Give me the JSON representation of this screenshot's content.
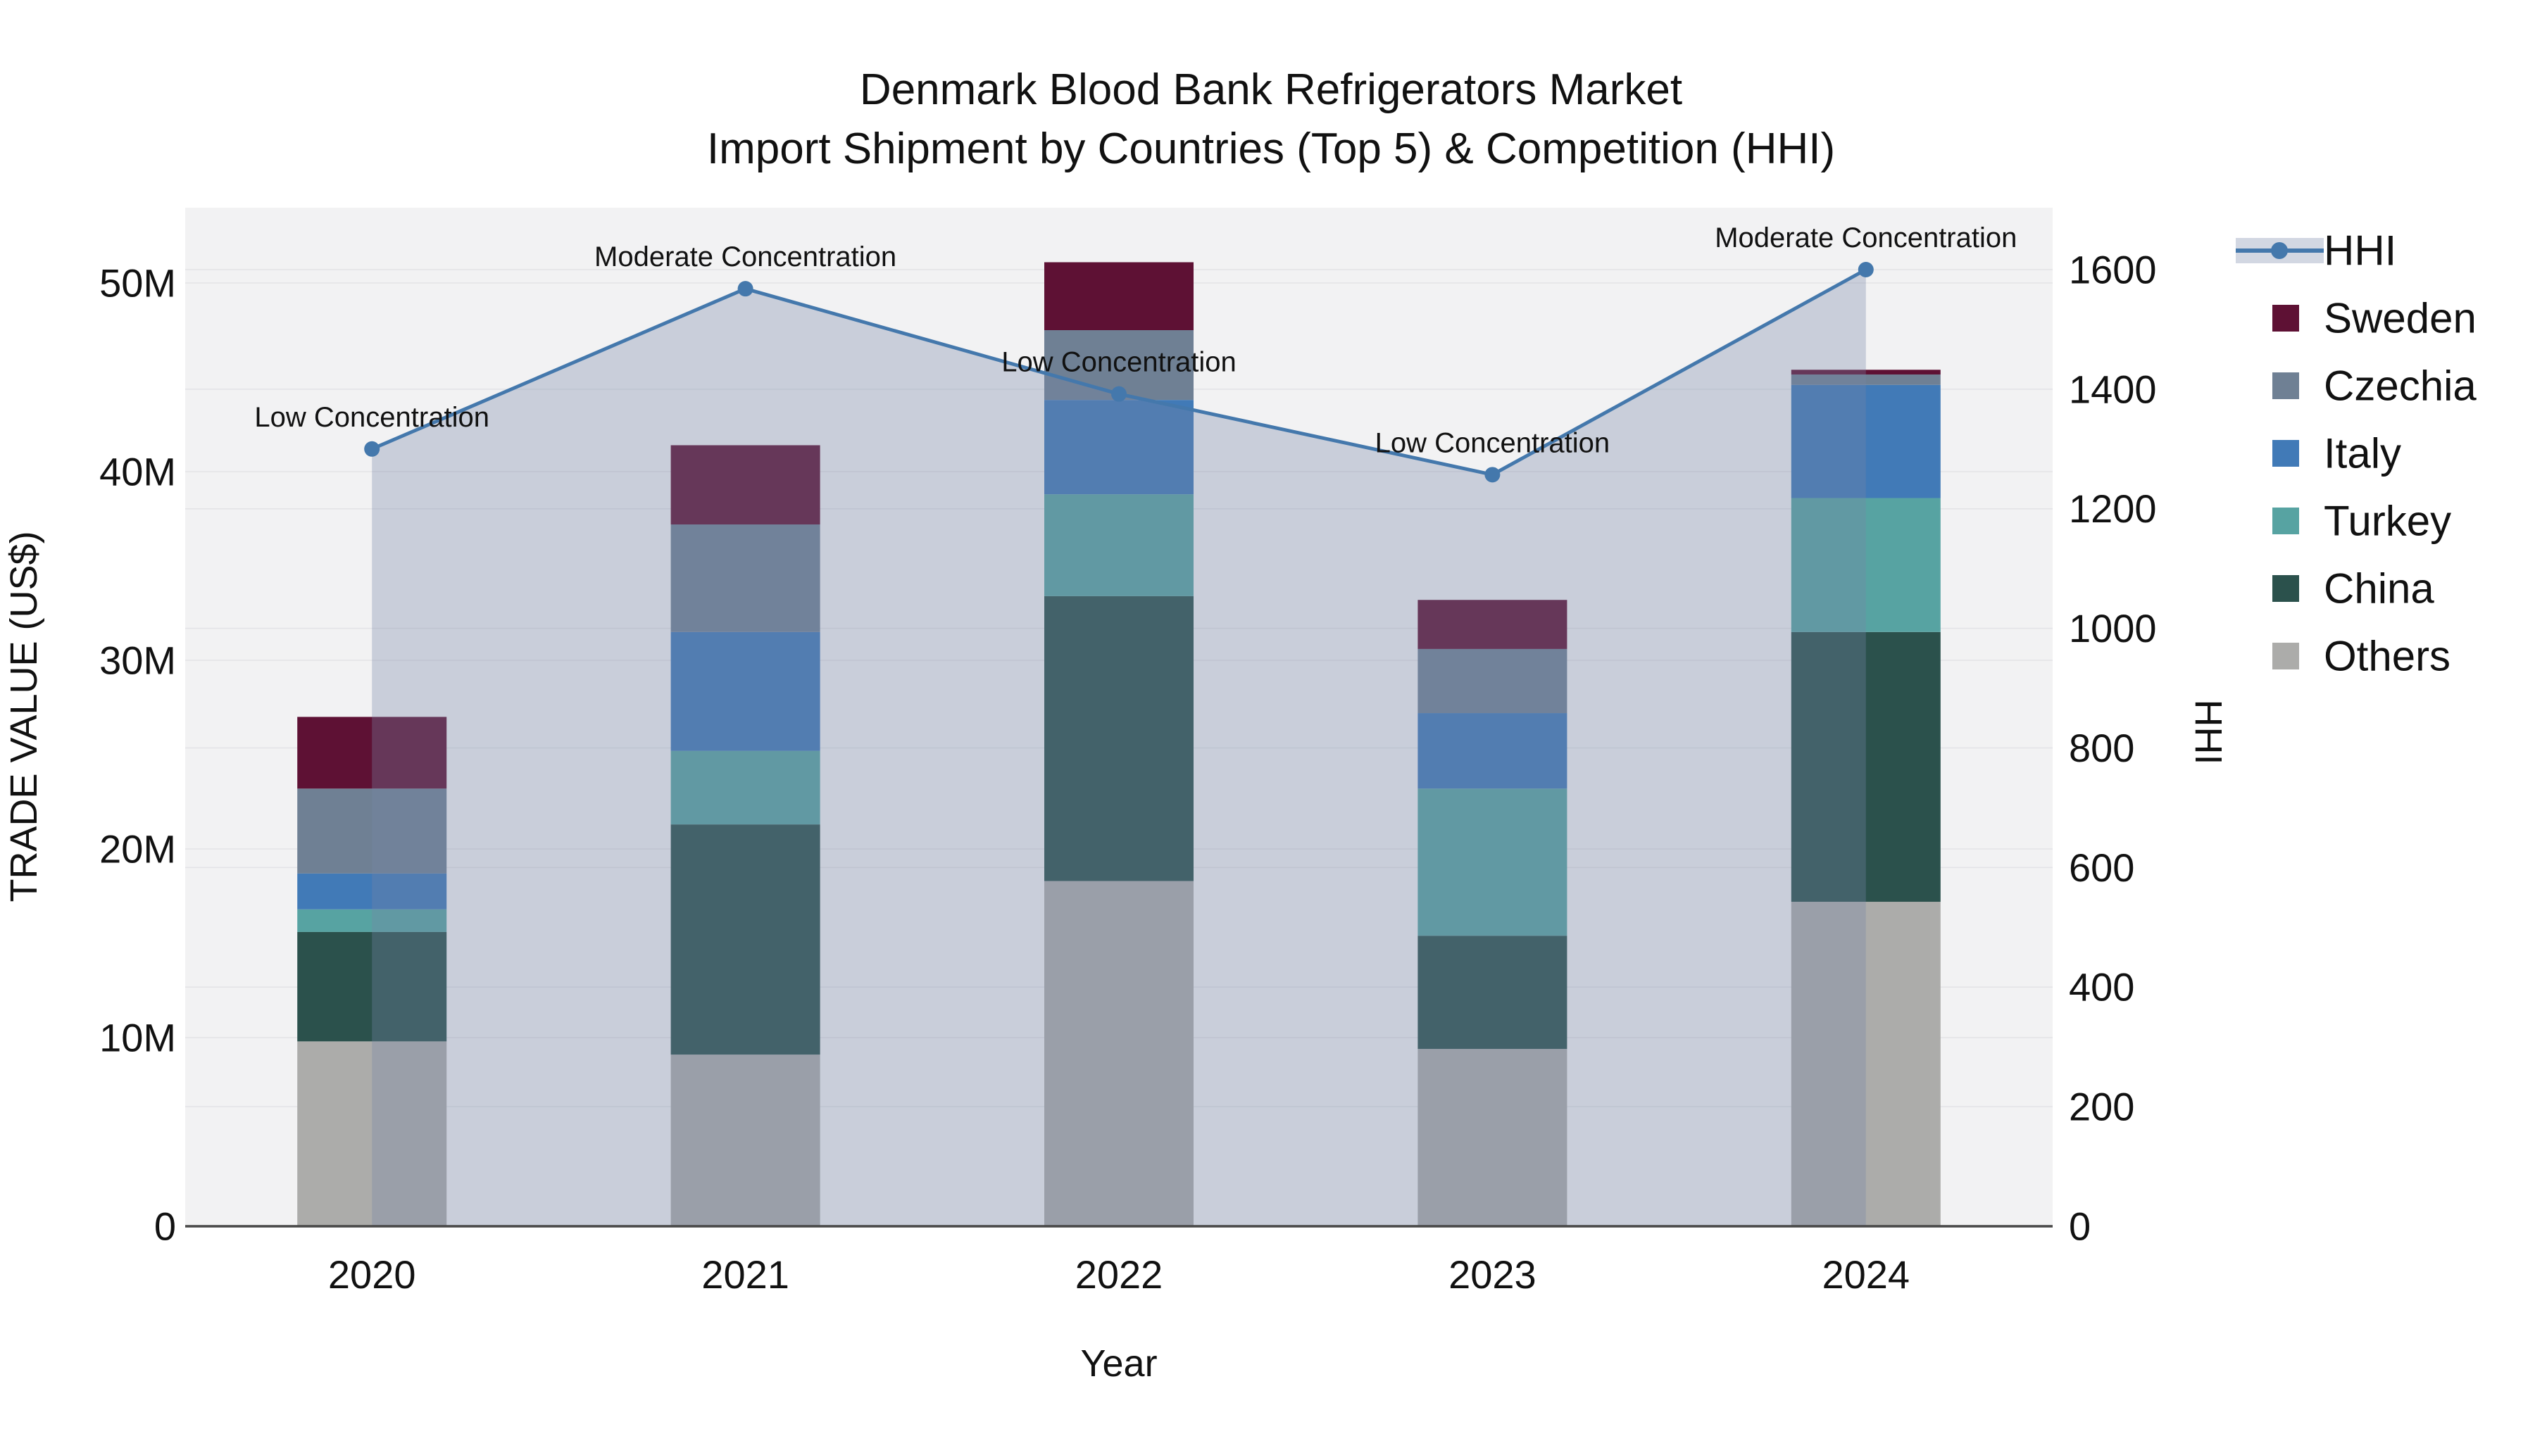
{
  "title": {
    "line1": "Denmark Blood Bank Refrigerators Market",
    "line2": "Import Shipment by Countries (Top 5) & Competition (HHI)"
  },
  "axes": {
    "x_title": "Year",
    "y_left_title": "TRADE VALUE (US$)",
    "y_right_title": "HHI",
    "y_left_tick_labels": [
      "0",
      "10M",
      "20M",
      "30M",
      "40M",
      "50M"
    ],
    "y_left_tick_values_millions": [
      0,
      10,
      20,
      30,
      40,
      50
    ],
    "y_right_tick_labels": [
      "0",
      "200",
      "400",
      "600",
      "800",
      "1000",
      "1200",
      "1400",
      "1600"
    ],
    "y_right_tick_values": [
      0,
      200,
      400,
      600,
      800,
      1000,
      1200,
      1400,
      1600
    ]
  },
  "legend": {
    "items": [
      {
        "label": "HHI",
        "type": "line",
        "color": "#4478ac"
      },
      {
        "label": "Sweden",
        "type": "swatch",
        "color": "#5e1134"
      },
      {
        "label": "Czechia",
        "type": "swatch",
        "color": "#6f8094"
      },
      {
        "label": "Italy",
        "type": "swatch",
        "color": "#417ab7"
      },
      {
        "label": "Turkey",
        "type": "swatch",
        "color": "#57a3a2"
      },
      {
        "label": "China",
        "type": "swatch",
        "color": "#2b514c"
      },
      {
        "label": "Others",
        "type": "swatch",
        "color": "#acacaa"
      }
    ]
  },
  "colors": {
    "plot_bg": "#f2f2f3",
    "gridline": "#e3e3e6",
    "axis_line": "#484848",
    "hhi_line": "#4478ac",
    "hhi_area_fill": "rgba(119,134,168,0.33)",
    "text": "#111111"
  },
  "chart_data": {
    "type": "bar",
    "subtype": "stacked-bars-with-line-overlay",
    "categories": [
      "2020",
      "2021",
      "2022",
      "2023",
      "2024"
    ],
    "bar_value_unit": "USD millions",
    "series": [
      {
        "name": "Others",
        "color": "#acacaa",
        "values": [
          9.8,
          9.1,
          18.3,
          9.4,
          17.2
        ]
      },
      {
        "name": "China",
        "color": "#2b514c",
        "values": [
          5.8,
          12.2,
          15.1,
          6.0,
          14.3
        ]
      },
      {
        "name": "Turkey",
        "color": "#57a3a2",
        "values": [
          1.2,
          3.9,
          5.4,
          7.8,
          7.1
        ]
      },
      {
        "name": "Italy",
        "color": "#417ab7",
        "values": [
          1.9,
          6.3,
          5.0,
          4.0,
          6.0
        ]
      },
      {
        "name": "Czechia",
        "color": "#6f8094",
        "values": [
          4.5,
          5.7,
          3.7,
          3.4,
          0.55
        ]
      },
      {
        "name": "Sweden",
        "color": "#5e1134",
        "values": [
          3.8,
          4.2,
          3.6,
          2.6,
          0.25
        ]
      }
    ],
    "line_series": {
      "name": "HHI",
      "color": "#4478ac",
      "values": [
        1300,
        1568,
        1392,
        1257,
        1600
      ],
      "area_fill": "rgba(119,134,168,0.33)"
    },
    "annotations": [
      {
        "category": "2020",
        "text": "Low Concentration"
      },
      {
        "category": "2021",
        "text": "Moderate Concentration"
      },
      {
        "category": "2022",
        "text": "Low Concentration"
      },
      {
        "category": "2023",
        "text": "Low Concentration"
      },
      {
        "category": "2024",
        "text": "Moderate Concentration"
      }
    ],
    "title": "Denmark Blood Bank Refrigerators Market — Import Shipment by Countries (Top 5) & Competition (HHI)",
    "xlabel": "Year",
    "ylabel_left": "TRADE VALUE (US$)",
    "ylabel_right": "HHI",
    "ylim_left_millions": [
      0,
      54
    ],
    "ylim_right": [
      0,
      1703
    ],
    "grid": true,
    "legend_position": "right"
  }
}
